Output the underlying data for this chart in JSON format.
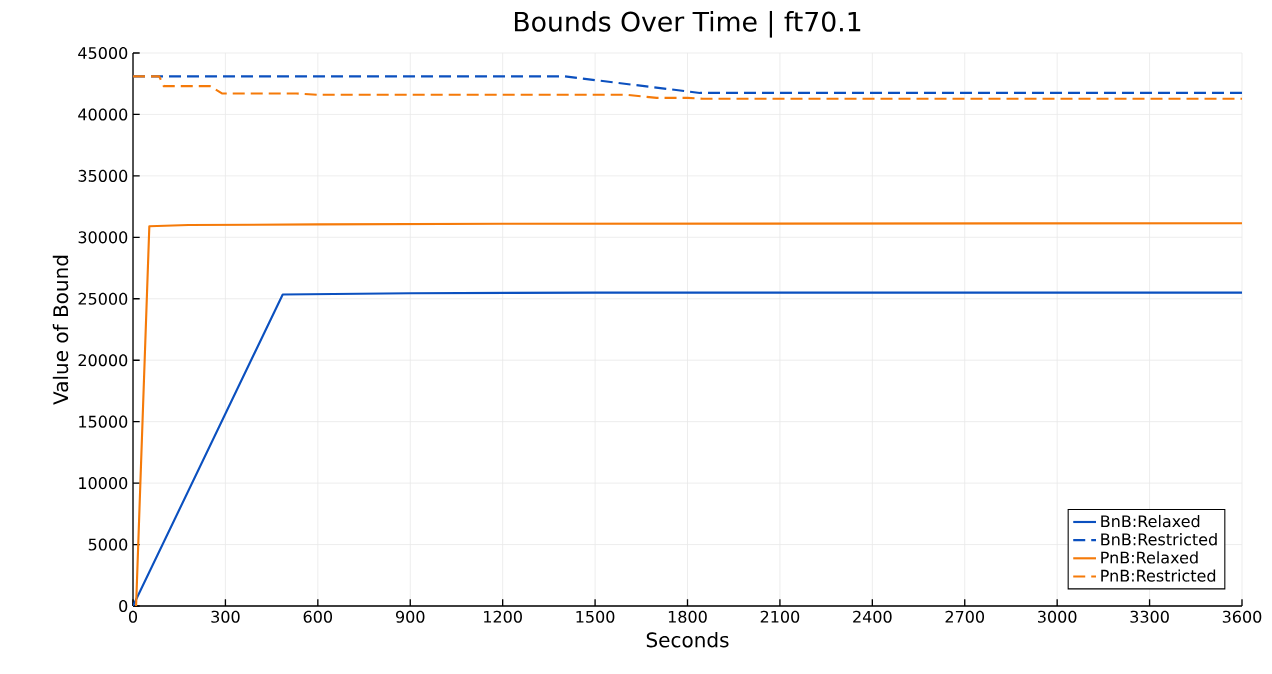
{
  "chart_data": {
    "type": "line",
    "title": "Bounds Over Time | ft70.1",
    "xlabel": "Seconds",
    "ylabel": "Value of Bound",
    "xlim": [
      0,
      3600
    ],
    "ylim": [
      0,
      45000
    ],
    "xticks": [
      0,
      300,
      600,
      900,
      1200,
      1500,
      1800,
      2100,
      2400,
      2700,
      3000,
      3300,
      3600
    ],
    "yticks": [
      0,
      5000,
      10000,
      15000,
      20000,
      25000,
      30000,
      35000,
      40000,
      45000
    ],
    "grid": true,
    "legend": "bottom right",
    "series": [
      {
        "name": "BnB:Relaxed",
        "color": "#0b50bf",
        "line_style": "solid",
        "x": [
          0,
          486,
          900,
          1500,
          3600
        ],
        "values": [
          0,
          25350,
          25450,
          25500,
          25500
        ]
      },
      {
        "name": "BnB:Restricted",
        "color": "#0b50bf",
        "line_style": "dashed",
        "x": [
          0,
          1400,
          1840,
          3600
        ],
        "values": [
          43100,
          43100,
          41750,
          41750
        ]
      },
      {
        "name": "PnB:Relaxed",
        "color": "#f57a09",
        "line_style": "solid",
        "x": [
          10,
          53,
          180,
          600,
          1200,
          3600
        ],
        "values": [
          0,
          30900,
          31000,
          31050,
          31100,
          31150
        ]
      },
      {
        "name": "PnB:Restricted",
        "color": "#f57a09",
        "line_style": "dashed",
        "x": [
          0,
          85,
          100,
          250,
          290,
          530,
          600,
          1600,
          1700,
          1800,
          1850,
          3600
        ],
        "values": [
          43100,
          43100,
          42300,
          42300,
          41700,
          41700,
          41600,
          41600,
          41350,
          41350,
          41280,
          41280
        ]
      }
    ]
  }
}
